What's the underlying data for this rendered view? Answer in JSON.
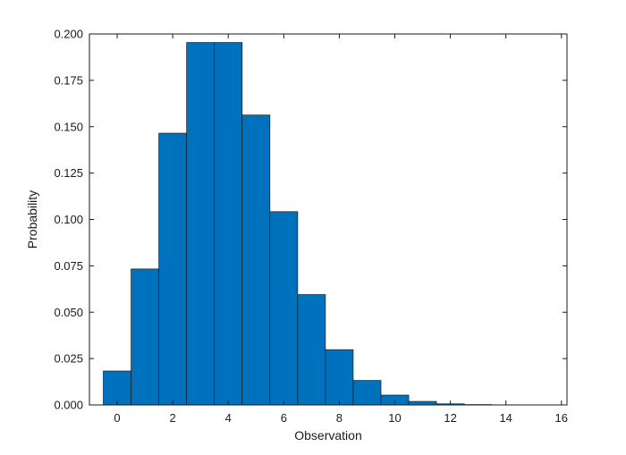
{
  "chart_data": {
    "type": "bar",
    "title": "",
    "xlabel": "Observation",
    "ylabel": "Probability",
    "categories": [
      0,
      1,
      2,
      3,
      4,
      5,
      6,
      7,
      8,
      9,
      10,
      11,
      12,
      13,
      14,
      15
    ],
    "values": [
      0.0183,
      0.0733,
      0.1465,
      0.1954,
      0.1954,
      0.1563,
      0.1042,
      0.0595,
      0.0298,
      0.0132,
      0.0053,
      0.0019,
      0.0006,
      0.0002,
      5e-05,
      1e-05
    ],
    "xlim": [
      -1,
      16.2
    ],
    "ylim": [
      0,
      0.2
    ],
    "xticks": [
      0,
      2,
      4,
      6,
      8,
      10,
      12,
      14,
      16
    ],
    "yticks": [
      "0.000",
      "0.025",
      "0.050",
      "0.075",
      "0.100",
      "0.125",
      "0.150",
      "0.175",
      "0.200"
    ],
    "bar_color": "#0072BD",
    "edge_color": "#1a1a1a",
    "grid": false,
    "legend": false
  }
}
